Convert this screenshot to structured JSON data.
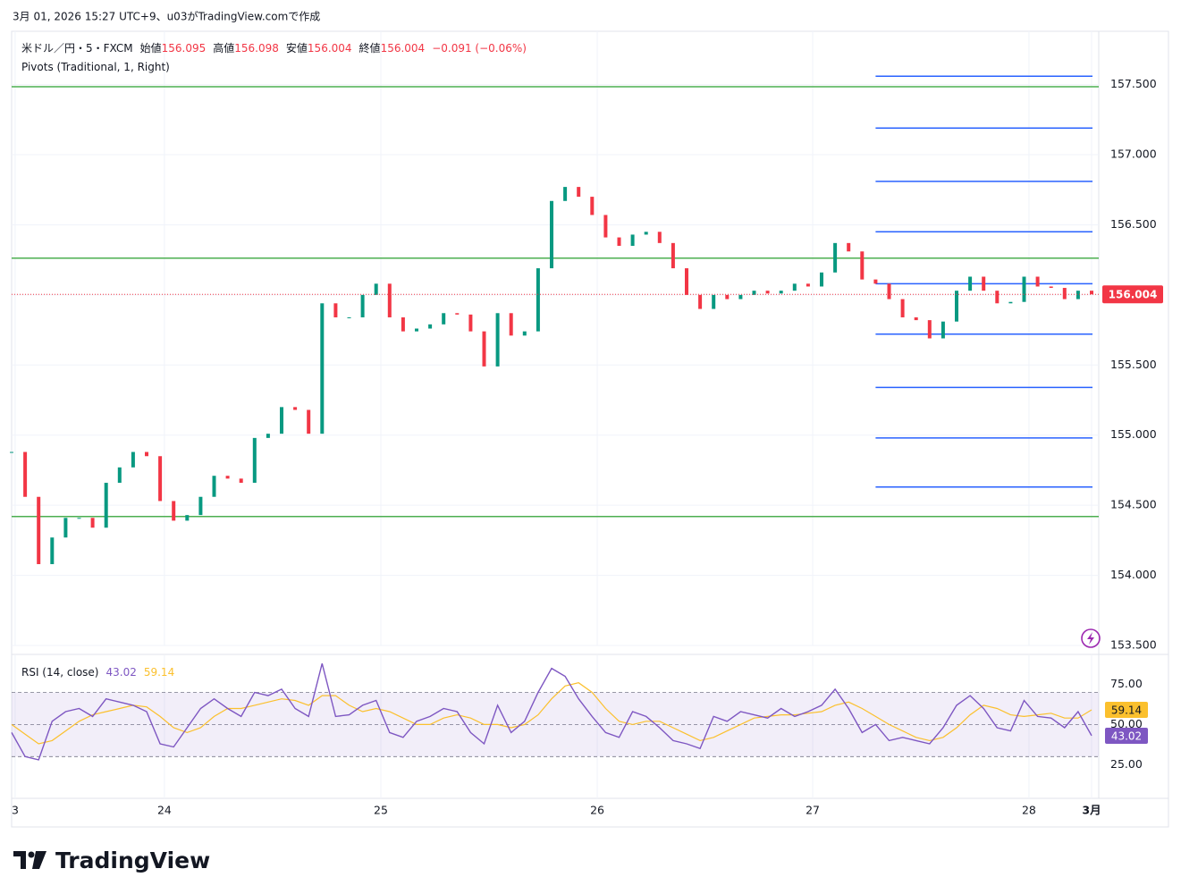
{
  "header": {
    "caption": "3月 01, 2026 15:27 UTC+9、u03がTradingView.comで作成"
  },
  "chart_data": [
    {
      "type": "candle-line",
      "title": "米ドル／円・5・FXCM",
      "quote": [
        {
          "label": "始値",
          "value": 156.095
        },
        {
          "label": "高値",
          "value": 156.098
        },
        {
          "label": "安値",
          "value": 156.004
        },
        {
          "label": "終値",
          "value": 156.004
        }
      ],
      "change": "−0.091 (−0.06%)",
      "quote_color": "#f23645",
      "indicator": "Pivots (Traditional, 1, Right)",
      "x": [
        0,
        1,
        2,
        3,
        4,
        5,
        6,
        7,
        8,
        9,
        10,
        11,
        12,
        13,
        14,
        15,
        16,
        17,
        18,
        19,
        20,
        21,
        22,
        23,
        24,
        25,
        26,
        27,
        28,
        29,
        30,
        31,
        32,
        33,
        34,
        35,
        36,
        37,
        38,
        39,
        40,
        41,
        42,
        43,
        44,
        45,
        46,
        47,
        48,
        49,
        50,
        51,
        52,
        53,
        54,
        55,
        56,
        57,
        58,
        59,
        60,
        61,
        62,
        63,
        64,
        65,
        66,
        67,
        68,
        69,
        70,
        71,
        72,
        73,
        74,
        75,
        76,
        77,
        78,
        79,
        80
      ],
      "values": [
        154.88,
        154.56,
        154.08,
        154.27,
        154.41,
        154.41,
        154.34,
        154.66,
        154.77,
        154.88,
        154.85,
        154.53,
        154.39,
        154.43,
        154.56,
        154.71,
        154.69,
        154.66,
        154.98,
        155.01,
        155.2,
        155.18,
        155.01,
        155.94,
        155.84,
        155.84,
        156.0,
        156.08,
        155.84,
        155.74,
        155.76,
        155.79,
        155.87,
        155.86,
        155.74,
        155.49,
        155.87,
        155.71,
        155.74,
        156.19,
        156.67,
        156.77,
        156.7,
        156.57,
        156.41,
        156.35,
        156.43,
        156.45,
        156.37,
        156.19,
        156.0,
        155.9,
        156.0,
        155.97,
        156.0,
        156.03,
        156.01,
        156.03,
        156.08,
        156.06,
        156.16,
        156.37,
        156.31,
        156.11,
        156.08,
        155.97,
        155.84,
        155.82,
        155.69,
        155.81,
        156.03,
        156.13,
        156.03,
        155.94,
        155.95,
        156.13,
        156.06,
        156.05,
        155.97,
        156.03,
        156.004
      ],
      "up_color": "#089981",
      "down_color": "#f23645",
      "pivots_previous": [
        157.485,
        156.262,
        154.42
      ],
      "pivots_previous_color": "#4caf50",
      "pivots_current": [
        157.56,
        157.19,
        156.81,
        156.45,
        156.08,
        155.72,
        155.34,
        154.98,
        154.63
      ],
      "pivots_current_color": "#2962ff",
      "pivots_current_from": 64,
      "xlim": [
        0,
        80
      ],
      "xticks": [
        {
          "value": 0.26,
          "label": "3"
        },
        {
          "value": 11.32,
          "label": "24"
        },
        {
          "value": 27.35,
          "label": "25"
        },
        {
          "value": 43.38,
          "label": "26"
        },
        {
          "value": 59.34,
          "label": "27"
        },
        {
          "value": 75.36,
          "label": "28"
        },
        {
          "value": 80,
          "label": "3月"
        }
      ],
      "ylim": [
        153.5,
        157.88
      ],
      "yticks": [
        {
          "value": 153.5,
          "label": "153.500"
        },
        {
          "value": 154,
          "label": "154.000"
        },
        {
          "value": 154.5,
          "label": "154.500"
        },
        {
          "value": 155,
          "label": "155.000"
        },
        {
          "value": 155.5,
          "label": "155.500"
        },
        {
          "value": 156,
          "label": "156.000"
        },
        {
          "value": 156.5,
          "label": "156.500"
        },
        {
          "value": 157,
          "label": "157.000"
        },
        {
          "value": 157.5,
          "label": "157.500"
        }
      ],
      "grid": true
    },
    {
      "type": "line",
      "title": "RSI (14, close)",
      "series": [
        {
          "color": "#7e57c2",
          "values": [
            45,
            30,
            28,
            52,
            58,
            60,
            55,
            66,
            64,
            62,
            58,
            38,
            36,
            48,
            60,
            66,
            60,
            55,
            70,
            68,
            72,
            60,
            55,
            88,
            55,
            56,
            62,
            65,
            45,
            42,
            52,
            55,
            60,
            58,
            45,
            38,
            62,
            45,
            52,
            70,
            85,
            80,
            66,
            55,
            45,
            42,
            58,
            55,
            48,
            40,
            38,
            35,
            55,
            52,
            58,
            56,
            54,
            60,
            55,
            58,
            62,
            72,
            60,
            45,
            50,
            40,
            42,
            40,
            38,
            48,
            62,
            68,
            60,
            48,
            46,
            65,
            55,
            54,
            48,
            58,
            43.02
          ]
        },
        {
          "color": "#fbc02d",
          "values": [
            50,
            44,
            38,
            40,
            46,
            52,
            56,
            58,
            60,
            62,
            61,
            55,
            48,
            45,
            48,
            55,
            60,
            60,
            62,
            64,
            66,
            65,
            62,
            68,
            68,
            62,
            58,
            60,
            58,
            54,
            50,
            50,
            54,
            56,
            54,
            50,
            50,
            48,
            50,
            56,
            66,
            74,
            76,
            70,
            60,
            52,
            50,
            52,
            52,
            48,
            44,
            40,
            42,
            46,
            50,
            54,
            55,
            56,
            56,
            57,
            58,
            62,
            64,
            60,
            55,
            50,
            46,
            42,
            40,
            42,
            48,
            56,
            62,
            60,
            56,
            55,
            56,
            57,
            54,
            54,
            59.14
          ]
        }
      ],
      "bands": [
        70,
        50,
        30
      ],
      "band_fill": "#7e57c2",
      "ylim": [
        4,
        92
      ],
      "yticks": [
        {
          "value": 25,
          "label": "25.00"
        },
        {
          "value": 50,
          "label": "50.00"
        },
        {
          "value": 75,
          "label": "75.00"
        }
      ]
    }
  ],
  "footer": {
    "brand": "TradingView"
  }
}
